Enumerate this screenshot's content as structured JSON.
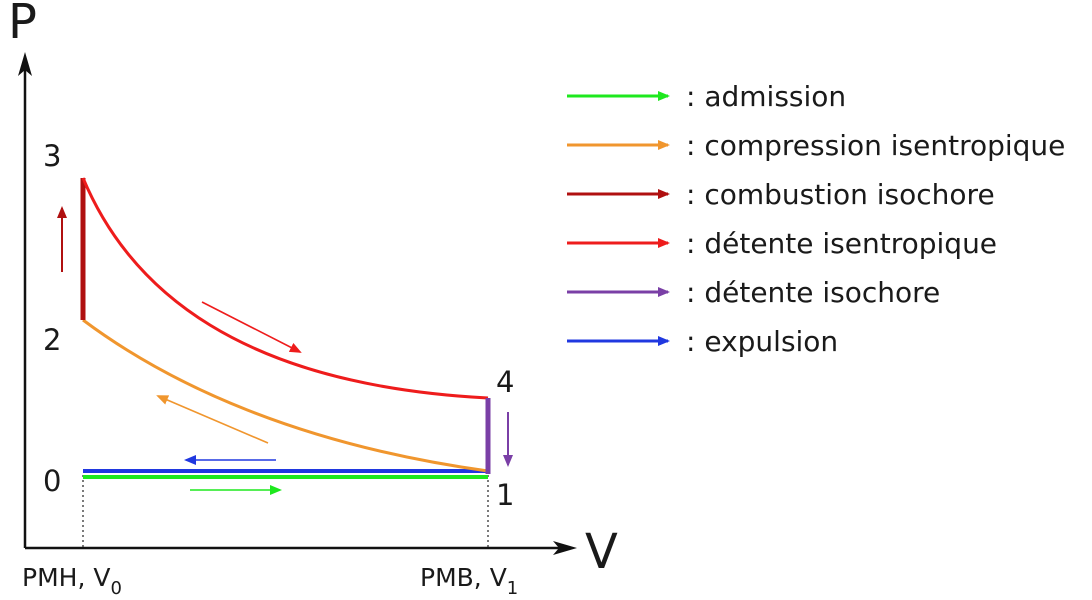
{
  "axes": {
    "y_label": "P",
    "x_label": "V",
    "x_ticks": [
      {
        "main": "PMH, V",
        "sub": "0"
      },
      {
        "main": "PMB, V",
        "sub": "1"
      }
    ]
  },
  "points": [
    "0",
    "1",
    "2",
    "3",
    "4"
  ],
  "legend": [
    {
      "label": ": admission",
      "color": "#1ee81e"
    },
    {
      "label": ": compression isentropique",
      "color": "#f0962e"
    },
    {
      "label": ": combustion isochore",
      "color": "#b01010"
    },
    {
      "label": ": détente isentropique",
      "color": "#ee1c1c"
    },
    {
      "label": ": détente isochore",
      "color": "#7a3fa6"
    },
    {
      "label": ": expulsion",
      "color": "#2038e0"
    }
  ]
}
